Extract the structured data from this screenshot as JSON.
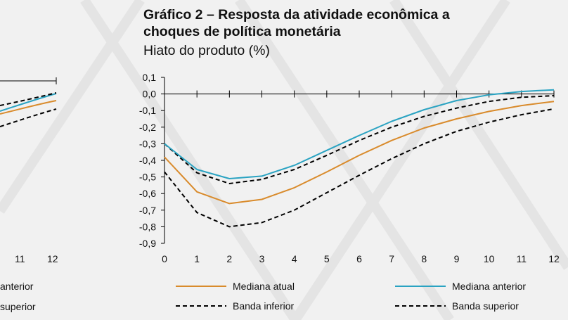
{
  "left_panel": {
    "x_tick_labels": [
      "11",
      "12"
    ],
    "legend_partial": [
      "anterior",
      "superior"
    ]
  },
  "title_line1": "Gráfico 2 – Resposta da atividade econômica a",
  "title_line2": "choques de política monetária",
  "subtitle": "Hiato do produto (%)",
  "colors": {
    "background": "#f1f1f1",
    "mediana_atual": "#d98b2c",
    "mediana_anterior": "#2aa3c2",
    "bands": "#000000"
  },
  "chart_data": {
    "type": "line",
    "x": [
      0,
      1,
      2,
      3,
      4,
      5,
      6,
      7,
      8,
      9,
      10,
      11,
      12
    ],
    "ylim": [
      -0.9,
      0.1
    ],
    "xlim": [
      0,
      12
    ],
    "y_tick_labels": [
      "0,1",
      "0,0",
      "-0,1",
      "-0,2",
      "-0,3",
      "-0,4",
      "-0,5",
      "-0,6",
      "-0,7",
      "-0,8",
      "-0,9"
    ],
    "x_tick_labels": [
      "0",
      "1",
      "2",
      "3",
      "4",
      "5",
      "6",
      "7",
      "8",
      "9",
      "10",
      "11",
      "12"
    ],
    "legend_position": "bottom",
    "series": [
      {
        "name": "Mediana atual",
        "style": "solid",
        "color": "#d98b2c",
        "values": [
          -0.38,
          -0.59,
          -0.66,
          -0.635,
          -0.565,
          -0.47,
          -0.37,
          -0.28,
          -0.205,
          -0.15,
          -0.105,
          -0.07,
          -0.045
        ]
      },
      {
        "name": "Mediana anterior",
        "style": "solid",
        "color": "#2aa3c2",
        "values": [
          -0.3,
          -0.455,
          -0.51,
          -0.495,
          -0.43,
          -0.34,
          -0.25,
          -0.165,
          -0.095,
          -0.04,
          -0.005,
          0.015,
          0.025
        ]
      },
      {
        "name": "Banda inferior",
        "style": "dashed",
        "color": "#000000",
        "values": [
          -0.47,
          -0.715,
          -0.8,
          -0.775,
          -0.7,
          -0.595,
          -0.49,
          -0.39,
          -0.3,
          -0.225,
          -0.17,
          -0.125,
          -0.09
        ]
      },
      {
        "name": "Banda superior",
        "style": "dashed",
        "color": "#000000",
        "values": [
          -0.3,
          -0.475,
          -0.54,
          -0.515,
          -0.455,
          -0.37,
          -0.28,
          -0.2,
          -0.135,
          -0.085,
          -0.045,
          -0.02,
          -0.01
        ]
      }
    ]
  }
}
